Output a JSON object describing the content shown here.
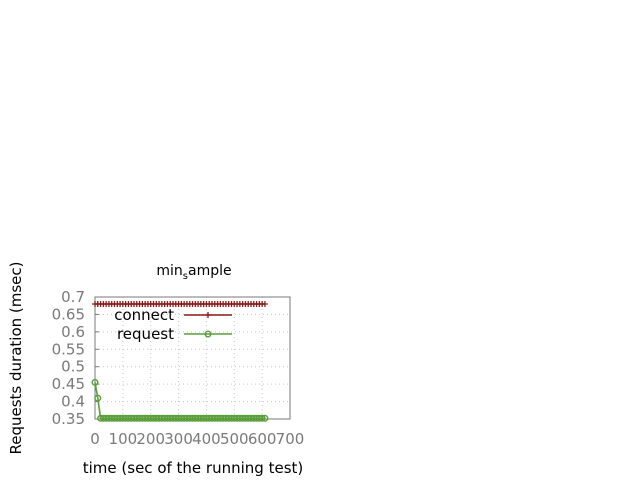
{
  "chart_data": {
    "type": "line",
    "title": {
      "base": "min",
      "subscript": "s",
      "rest": "ample"
    },
    "xlabel": "time (sec of the running test)",
    "ylabel": "Requests duration (msec)",
    "xlim": [
      0,
      700
    ],
    "ylim": [
      0.35,
      0.7
    ],
    "xticks": [
      "0",
      "100",
      "200",
      "300",
      "400",
      "500",
      "600",
      "700"
    ],
    "yticks": [
      "0.35",
      "0.4",
      "0.45",
      "0.5",
      "0.55",
      "0.6",
      "0.65",
      "0.7"
    ],
    "grid": true,
    "legend_position": "top-left",
    "series": [
      {
        "name": "connect",
        "color": "#8b1a1a",
        "marker": "plus",
        "x": [
          0,
          10,
          20,
          30,
          40,
          50,
          60,
          70,
          80,
          90,
          100,
          110,
          120,
          130,
          140,
          150,
          160,
          170,
          180,
          190,
          200,
          210,
          220,
          230,
          240,
          250,
          260,
          270,
          280,
          290,
          300,
          310,
          320,
          330,
          340,
          350,
          360,
          370,
          380,
          390,
          400,
          410,
          420,
          430,
          440,
          450,
          460,
          470,
          480,
          490,
          500,
          510,
          520,
          530,
          540,
          550,
          560,
          570,
          580,
          590,
          600,
          610
        ],
        "y": [
          0.68,
          0.68,
          0.68,
          0.68,
          0.68,
          0.68,
          0.68,
          0.68,
          0.68,
          0.68,
          0.68,
          0.68,
          0.68,
          0.68,
          0.68,
          0.68,
          0.68,
          0.68,
          0.68,
          0.68,
          0.68,
          0.68,
          0.68,
          0.68,
          0.68,
          0.68,
          0.68,
          0.68,
          0.68,
          0.68,
          0.68,
          0.68,
          0.68,
          0.68,
          0.68,
          0.68,
          0.68,
          0.68,
          0.68,
          0.68,
          0.68,
          0.68,
          0.68,
          0.68,
          0.68,
          0.68,
          0.68,
          0.68,
          0.68,
          0.68,
          0.68,
          0.68,
          0.68,
          0.68,
          0.68,
          0.68,
          0.68,
          0.68,
          0.68,
          0.68,
          0.68,
          0.68
        ]
      },
      {
        "name": "request",
        "color": "#5a9e3a",
        "marker": "circle",
        "x": [
          0,
          10,
          20,
          30,
          40,
          50,
          60,
          70,
          80,
          90,
          100,
          110,
          120,
          130,
          140,
          150,
          160,
          170,
          180,
          190,
          200,
          210,
          220,
          230,
          240,
          250,
          260,
          270,
          280,
          290,
          300,
          310,
          320,
          330,
          340,
          350,
          360,
          370,
          380,
          390,
          400,
          410,
          420,
          430,
          440,
          450,
          460,
          470,
          480,
          490,
          500,
          510,
          520,
          530,
          540,
          550,
          560,
          570,
          580,
          590,
          600,
          610
        ],
        "y": [
          0.455,
          0.41,
          0.352,
          0.352,
          0.352,
          0.352,
          0.352,
          0.352,
          0.352,
          0.352,
          0.352,
          0.352,
          0.352,
          0.352,
          0.352,
          0.352,
          0.352,
          0.352,
          0.352,
          0.352,
          0.352,
          0.352,
          0.352,
          0.352,
          0.352,
          0.352,
          0.352,
          0.352,
          0.352,
          0.352,
          0.352,
          0.352,
          0.352,
          0.352,
          0.352,
          0.352,
          0.352,
          0.352,
          0.352,
          0.352,
          0.352,
          0.352,
          0.352,
          0.352,
          0.352,
          0.352,
          0.352,
          0.352,
          0.352,
          0.352,
          0.352,
          0.352,
          0.352,
          0.352,
          0.352,
          0.352,
          0.352,
          0.352,
          0.352,
          0.352,
          0.352,
          0.352
        ]
      }
    ]
  }
}
